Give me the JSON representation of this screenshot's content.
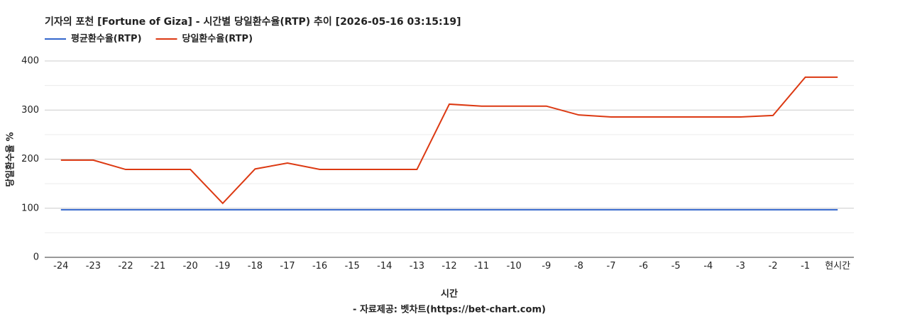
{
  "chart_data": {
    "type": "line",
    "title": "기자의 포천 [Fortune of Giza] - 시간별 당일환수율(RTP) 추이 [2026-05-16 03:15:19]",
    "x_label": "시간",
    "y_label": "당일환수율 %",
    "source": "- 자료제공: 벳차트(https://bet-chart.com)",
    "categories": [
      "-24",
      "-23",
      "-22",
      "-21",
      "-20",
      "-19",
      "-18",
      "-17",
      "-16",
      "-15",
      "-14",
      "-13",
      "-12",
      "-11",
      "-10",
      "-9",
      "-8",
      "-7",
      "-6",
      "-5",
      "-4",
      "-3",
      "-2",
      "-1",
      "현시간"
    ],
    "series": [
      {
        "name": "평균환수율(RTP)",
        "color": "#3366cc",
        "values": [
          97,
          97,
          97,
          97,
          97,
          97,
          97,
          97,
          97,
          97,
          97,
          97,
          97,
          97,
          97,
          97,
          97,
          97,
          97,
          97,
          97,
          97,
          97,
          97,
          97
        ]
      },
      {
        "name": "당일환수율(RTP)",
        "color": "#dc3912",
        "values": [
          198,
          198,
          179,
          179,
          179,
          110,
          180,
          192,
          179,
          179,
          179,
          179,
          312,
          308,
          308,
          308,
          290,
          286,
          286,
          286,
          286,
          286,
          289,
          367,
          367
        ]
      }
    ],
    "ylim": [
      0,
      400
    ],
    "yticks": [
      0,
      100,
      200,
      300,
      400
    ],
    "minor_yticks": [
      50,
      150,
      250,
      350
    ],
    "grid": true
  }
}
